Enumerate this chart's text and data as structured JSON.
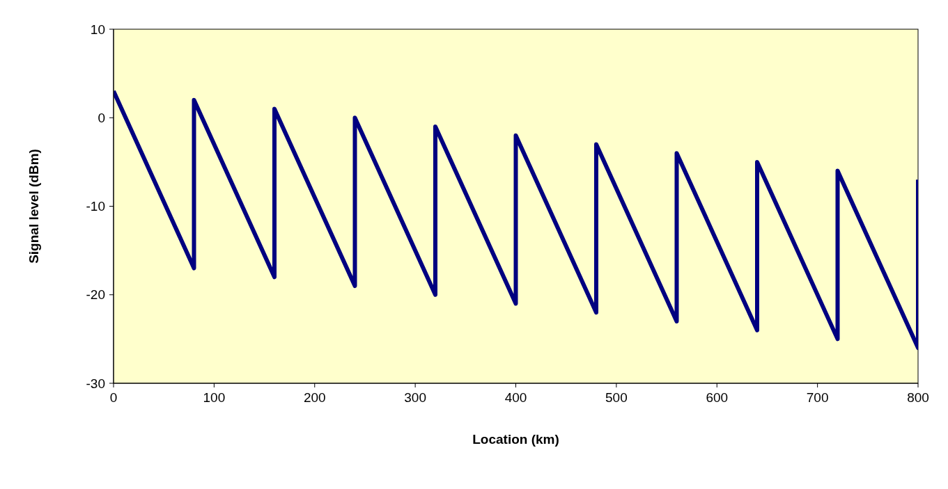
{
  "chart_data": {
    "type": "line",
    "xlabel": "Location (km)",
    "ylabel": "Signal level (dBm)",
    "x": [
      0,
      80,
      80,
      160,
      160,
      240,
      240,
      320,
      320,
      400,
      400,
      480,
      480,
      560,
      560,
      640,
      640,
      720,
      720,
      800,
      800
    ],
    "series": [
      {
        "color": "#000080",
        "values": [
          3,
          -17,
          2,
          -18,
          1,
          -19,
          0,
          -20,
          -1,
          -21,
          -2,
          -22,
          -3,
          -23,
          -4,
          -24,
          -5,
          -25,
          -6,
          -26,
          -7
        ]
      }
    ],
    "xlim": [
      0,
      800
    ],
    "xticks": [
      0,
      100,
      200,
      300,
      400,
      500,
      600,
      700,
      800
    ],
    "ylim": [
      -30,
      10
    ],
    "yticks": [
      -30,
      -20,
      -10,
      0,
      10
    ],
    "grid": false,
    "legend": false,
    "marker": "none",
    "line_style": "solid"
  }
}
